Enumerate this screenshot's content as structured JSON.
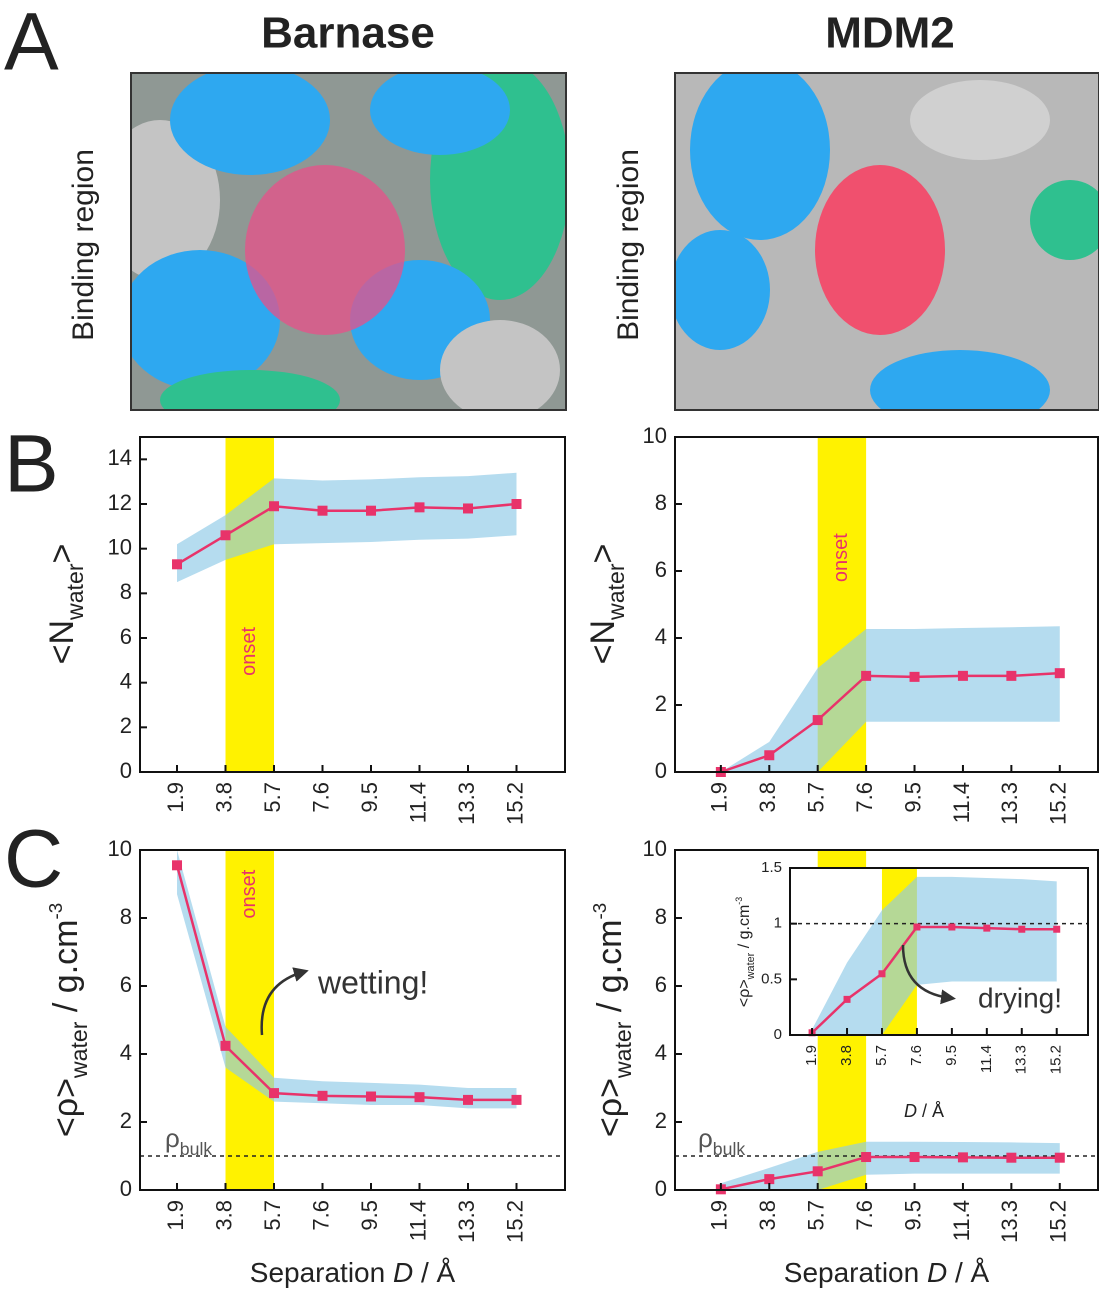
{
  "figure": {
    "panel_labels": [
      "A",
      "B",
      "C"
    ],
    "column_titles": [
      "Barnase",
      "MDM2"
    ],
    "image_labels": [
      "Binding region",
      "Binding region"
    ]
  },
  "chart_data": [
    {
      "type": "line",
      "x": [
        1.9,
        3.8,
        5.7,
        7.6,
        9.5,
        11.4,
        13.3,
        15.2
      ],
      "xlim": [
        0.45,
        17.1
      ],
      "xticks": [
        1.9,
        3.8,
        5.7,
        7.6,
        9.5,
        11.4,
        13.3,
        15.2
      ],
      "ylim": [
        0,
        15
      ],
      "yticks": [
        0,
        2,
        4,
        6,
        8,
        10,
        12,
        14
      ],
      "ylabel": [
        {
          "text": "<N"
        },
        {
          "text": "water",
          "style": "sub"
        },
        {
          "text": ">"
        }
      ],
      "highlight": {
        "x_range": [
          3.8,
          5.7
        ],
        "color": "#fff200",
        "label": "onset"
      },
      "series": [
        {
          "color": "#e8336a",
          "values": [
            9.3,
            10.6,
            11.9,
            11.7,
            11.7,
            11.85,
            11.8,
            12.0
          ],
          "band": {
            "color": "#8ecae6",
            "lower": [
              8.5,
              9.5,
              10.2,
              10.25,
              10.3,
              10.4,
              10.45,
              10.6
            ],
            "upper": [
              10.2,
              11.5,
              13.15,
              13.05,
              13.1,
              13.2,
              13.25,
              13.4
            ]
          }
        }
      ]
    },
    {
      "type": "line",
      "x": [
        1.9,
        3.8,
        5.7,
        7.6,
        9.5,
        11.4,
        13.3,
        15.2
      ],
      "xlim": [
        0.1,
        16.7
      ],
      "xticks": [
        1.9,
        3.8,
        5.7,
        7.6,
        9.5,
        11.4,
        13.3,
        15.2
      ],
      "ylim": [
        0,
        10
      ],
      "yticks": [
        0,
        2,
        4,
        6,
        8,
        10
      ],
      "ylabel": [
        {
          "text": "<N"
        },
        {
          "text": "water",
          "style": "sub"
        },
        {
          "text": ">"
        }
      ],
      "highlight": {
        "x_range": [
          5.7,
          7.6
        ],
        "color": "#fff200",
        "label": "onset"
      },
      "series": [
        {
          "color": "#e8336a",
          "values": [
            0,
            0.5,
            1.55,
            2.87,
            2.84,
            2.87,
            2.87,
            2.95
          ],
          "band": {
            "color": "#8ecae6",
            "lower": [
              0,
              0,
              0,
              1.5,
              1.5,
              1.5,
              1.5,
              1.5
            ],
            "upper": [
              0,
              0.9,
              3.1,
              4.27,
              4.27,
              4.3,
              4.32,
              4.35
            ]
          }
        }
      ]
    },
    {
      "type": "line",
      "x": [
        1.9,
        3.8,
        5.7,
        7.6,
        9.5,
        11.4,
        13.3,
        15.2
      ],
      "xlim": [
        0.45,
        17.1
      ],
      "xticks": [
        1.9,
        3.8,
        5.7,
        7.6,
        9.5,
        11.4,
        13.3,
        15.2
      ],
      "ylim": [
        0,
        10
      ],
      "yticks": [
        0,
        2,
        4,
        6,
        8,
        10
      ],
      "xlabel": [
        {
          "text": "Separation "
        },
        {
          "text": "D",
          "style": "italic"
        },
        {
          "text": " / Å"
        }
      ],
      "ylabel": [
        {
          "text": "<ρ>"
        },
        {
          "text": "water",
          "style": "sub"
        },
        {
          "text": " / g.cm"
        },
        {
          "text": "-3",
          "style": "sup"
        }
      ],
      "highlight": {
        "x_range": [
          3.8,
          5.7
        ],
        "color": "#fff200",
        "label": "onset"
      },
      "reference_line": {
        "y": 1,
        "label": [
          {
            "text": "ρ"
          },
          {
            "text": "bulk",
            "style": "sub"
          }
        ]
      },
      "annotation": "wetting!",
      "series": [
        {
          "color": "#e8336a",
          "values": [
            9.55,
            4.24,
            2.85,
            2.77,
            2.75,
            2.73,
            2.65,
            2.65
          ],
          "band": {
            "color": "#8ecae6",
            "lower": [
              8.7,
              3.6,
              2.6,
              2.55,
              2.5,
              2.5,
              2.4,
              2.4
            ],
            "upper": [
              10,
              4.8,
              3.3,
              3.2,
              3.15,
              3.1,
              3.0,
              3.0
            ]
          }
        }
      ]
    },
    {
      "type": "line",
      "x": [
        1.9,
        3.8,
        5.7,
        7.6,
        9.5,
        11.4,
        13.3,
        15.2
      ],
      "xlim": [
        0.1,
        16.7
      ],
      "xticks": [
        1.9,
        3.8,
        5.7,
        7.6,
        9.5,
        11.4,
        13.3,
        15.2
      ],
      "ylim": [
        0,
        10
      ],
      "yticks": [
        0,
        2,
        4,
        6,
        8,
        10
      ],
      "xlabel": [
        {
          "text": "Separation "
        },
        {
          "text": "D",
          "style": "italic"
        },
        {
          "text": " / Å"
        }
      ],
      "ylabel": [
        {
          "text": "<ρ>"
        },
        {
          "text": "water",
          "style": "sub"
        },
        {
          "text": " / g.cm"
        },
        {
          "text": "-3",
          "style": "sup"
        }
      ],
      "highlight": {
        "x_range": [
          5.7,
          7.6
        ],
        "color": "#fff200"
      },
      "reference_line": {
        "y": 1,
        "label": [
          {
            "text": "ρ"
          },
          {
            "text": "bulk",
            "style": "sub"
          }
        ]
      },
      "series": [
        {
          "color": "#e8336a",
          "values": [
            0.02,
            0.32,
            0.55,
            0.97,
            0.97,
            0.96,
            0.95,
            0.95
          ],
          "band": {
            "color": "#8ecae6",
            "lower": [
              0,
              0,
              0,
              0.45,
              0.48,
              0.48,
              0.48,
              0.48
            ],
            "upper": [
              0.2,
              0.65,
              1.12,
              1.42,
              1.42,
              1.41,
              1.4,
              1.38
            ]
          }
        }
      ]
    },
    {
      "type": "line",
      "x": [
        1.9,
        3.8,
        5.7,
        7.6,
        9.5,
        11.4,
        13.3,
        15.2
      ],
      "xlim": [
        0.7,
        16.9
      ],
      "xticks": [
        1.9,
        3.8,
        5.7,
        7.6,
        9.5,
        11.4,
        13.3,
        15.2
      ],
      "ylim": [
        0,
        1.5
      ],
      "yticks": [
        0,
        0.5,
        1,
        1.5
      ],
      "xlabel": [
        {
          "text": "D",
          "style": "italic"
        },
        {
          "text": " / Å"
        }
      ],
      "ylabel": [
        {
          "text": "<ρ>"
        },
        {
          "text": "water",
          "style": "sub"
        },
        {
          "text": " / g.cm"
        },
        {
          "text": "-3",
          "style": "sup"
        }
      ],
      "highlight": {
        "x_range": [
          5.7,
          7.6
        ],
        "color": "#fff200"
      },
      "reference_line": {
        "y": 1
      },
      "annotation": "drying!",
      "series": [
        {
          "color": "#e8336a",
          "values": [
            0.02,
            0.32,
            0.55,
            0.97,
            0.97,
            0.96,
            0.95,
            0.95
          ],
          "band": {
            "color": "#8ecae6",
            "lower": [
              0,
              0,
              0,
              0.45,
              0.48,
              0.48,
              0.48,
              0.48
            ],
            "upper": [
              0.05,
              0.65,
              1.12,
              1.42,
              1.42,
              1.41,
              1.4,
              1.38
            ]
          }
        }
      ]
    }
  ]
}
